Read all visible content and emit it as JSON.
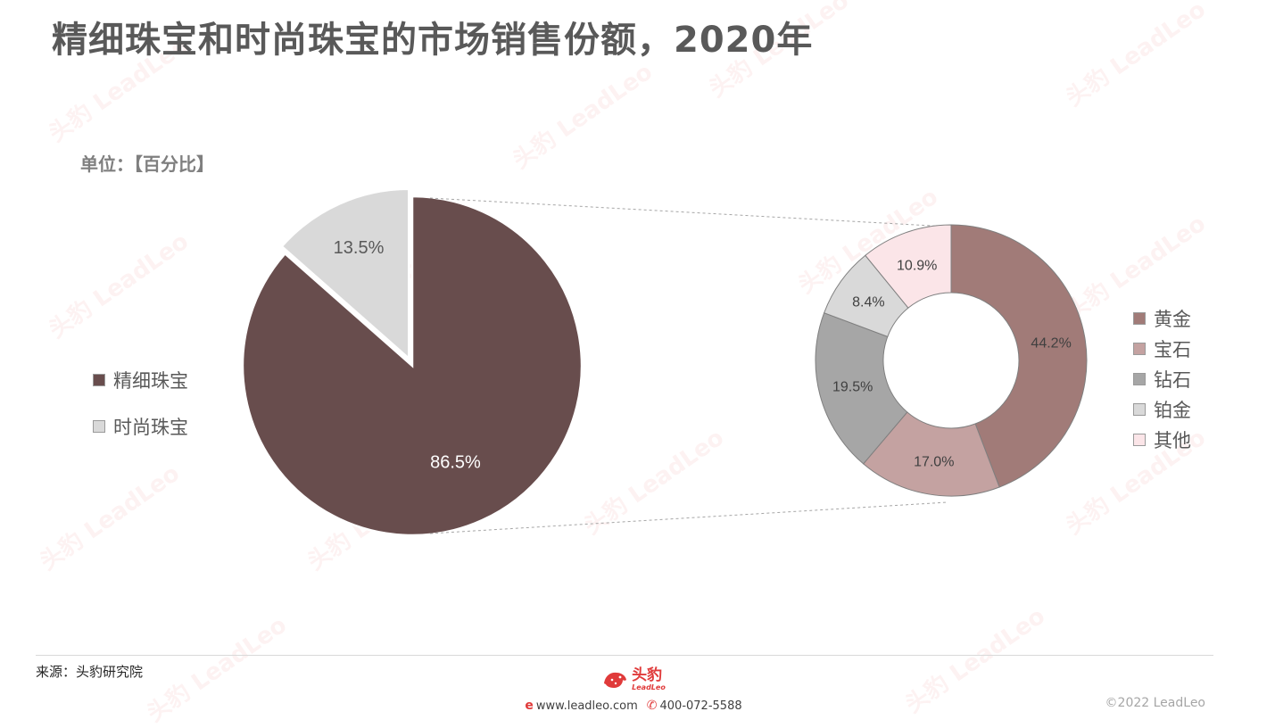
{
  "title": "精细珠宝和时尚珠宝的市场销售份额，2020年",
  "unit": "单位：【百分比】",
  "chart_data": [
    {
      "type": "pie",
      "categories": [
        "精细珠宝",
        "时尚珠宝"
      ],
      "values": [
        86.5,
        13.5
      ],
      "labels": [
        "86.5%",
        "13.5%"
      ],
      "colors": [
        "#684d4d",
        "#d9d9d9"
      ],
      "exploded": "时尚珠宝",
      "legend_position": "left"
    },
    {
      "type": "pie",
      "variant": "donut",
      "categories": [
        "黄金",
        "宝石",
        "钻石",
        "铂金",
        "其他"
      ],
      "values": [
        44.2,
        17.0,
        19.5,
        8.4,
        10.9
      ],
      "labels": [
        "44.2%",
        "17.0%",
        "19.5%",
        "8.4%",
        "10.9%"
      ],
      "colors": [
        "#a17b78",
        "#c4a2a1",
        "#a6a6a6",
        "#d9d9d9",
        "#fbe5e8"
      ],
      "legend_position": "right"
    }
  ],
  "footer": {
    "source": "来源：头豹研究院",
    "logo_cn": "头豹",
    "logo_en": "LeadLeo",
    "website": "www.leadleo.com",
    "phone": "400-072-5588",
    "copyright": "©2022 LeadLeo"
  },
  "watermark_text": "头豹 LeadLeo",
  "icons": {
    "web": "web-icon",
    "phone": "phone-icon",
    "logo": "leopard-logo-icon"
  }
}
